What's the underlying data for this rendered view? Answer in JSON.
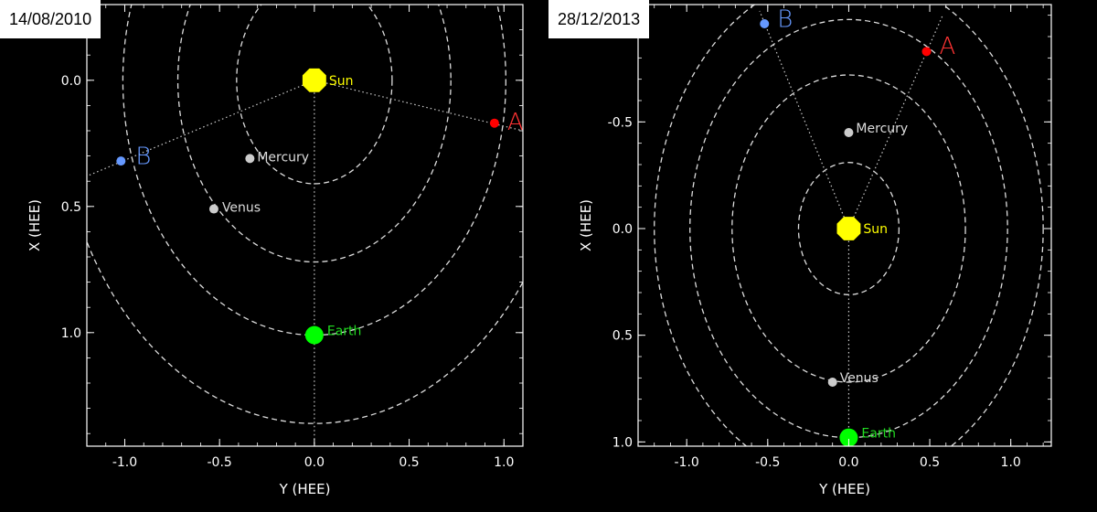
{
  "panels": [
    {
      "date": "14/08/2010",
      "chart_data": {
        "type": "scatter",
        "xlabel": "Y (HEE)",
        "ylabel": "X (HEE)",
        "xlim": [
          -1.2,
          1.1
        ],
        "ylim": [
          -0.3,
          1.45
        ],
        "y_inverted": true,
        "xticks": [
          -1.0,
          -0.5,
          0.0,
          0.5,
          1.0
        ],
        "xtick_labels": [
          "-1.0",
          "-0.5",
          "0.0",
          "0.5",
          "1.0"
        ],
        "yticks": [
          0.0,
          0.5,
          1.0
        ],
        "ytick_labels": [
          "0.0",
          "0.5",
          "1.0"
        ],
        "orbits": [
          {
            "cx": 0.0,
            "cy": 0.0,
            "r": 0.41
          },
          {
            "cx": 0.0,
            "cy": 0.0,
            "r": 0.72
          },
          {
            "cx": 0.0,
            "cy": 0.0,
            "r": 1.01
          },
          {
            "cx": 0.0,
            "cy": 0.0,
            "r": 1.36
          }
        ],
        "bodies": [
          {
            "name": "Sun",
            "x": 0.0,
            "y": 0.0,
            "color": "#ffff00",
            "size": 14,
            "label_color": "#ffff00",
            "label_dx": 16,
            "label_dy": 5
          },
          {
            "name": "Mercury",
            "x": -0.34,
            "y": 0.31,
            "color": "#cccccc",
            "size": 5,
            "label_color": "#dddddd",
            "label_dx": 8,
            "label_dy": 3
          },
          {
            "name": "Venus",
            "x": -0.53,
            "y": 0.51,
            "color": "#cccccc",
            "size": 5,
            "label_color": "#dddddd",
            "label_dx": 9,
            "label_dy": 3
          },
          {
            "name": "Earth",
            "x": 0.0,
            "y": 1.01,
            "color": "#00ff00",
            "size": 10,
            "label_color": "#22dd22",
            "label_dx": 14,
            "label_dy": 0
          },
          {
            "name": "A",
            "x": 0.95,
            "y": 0.17,
            "color": "#ff0000",
            "size": 5,
            "label_color": "#ff3333",
            "label_dx": 14,
            "label_dy": 0,
            "big_label": true
          },
          {
            "name": "B",
            "x": -1.02,
            "y": 0.32,
            "color": "#6699ff",
            "size": 5,
            "label_color": "#6699ff",
            "label_dx": 16,
            "label_dy": -4,
            "big_label": true
          }
        ],
        "connector_lines": [
          {
            "x1": 0.0,
            "y1": 0.0,
            "x2": 1.1,
            "y2": 0.2
          },
          {
            "x1": 0.0,
            "y1": 0.0,
            "x2": -1.2,
            "y2": 0.38
          },
          {
            "x1": 0.0,
            "y1": 0.0,
            "x2": 0.0,
            "y2": 1.45
          }
        ]
      }
    },
    {
      "date": "28/12/2013",
      "chart_data": {
        "type": "scatter",
        "xlabel": "Y (HEE)",
        "ylabel": "X (HEE)",
        "xlim": [
          -1.3,
          1.25
        ],
        "ylim": [
          -1.05,
          1.02
        ],
        "y_inverted": true,
        "xticks": [
          -1.0,
          -0.5,
          0.0,
          0.5,
          1.0
        ],
        "xtick_labels": [
          "-1.0",
          "-0.5",
          "0.0",
          "0.5",
          "1.0"
        ],
        "yticks": [
          -0.5,
          0.0,
          0.5,
          1.0
        ],
        "ytick_labels": [
          "-0.5",
          "0.0",
          "0.5",
          "1.0"
        ],
        "orbits": [
          {
            "cx": 0.0,
            "cy": 0.0,
            "r": 0.31
          },
          {
            "cx": 0.0,
            "cy": 0.0,
            "r": 0.72
          },
          {
            "cx": 0.0,
            "cy": 0.0,
            "r": 0.98
          },
          {
            "cx": 0.0,
            "cy": 0.0,
            "r": 1.2
          }
        ],
        "bodies": [
          {
            "name": "Sun",
            "x": 0.0,
            "y": 0.0,
            "color": "#ffff00",
            "size": 14,
            "label_color": "#ffff00",
            "label_dx": 16,
            "label_dy": 5
          },
          {
            "name": "Mercury",
            "x": 0.0,
            "y": -0.45,
            "color": "#cccccc",
            "size": 5,
            "label_color": "#dddddd",
            "label_dx": 8,
            "label_dy": 0
          },
          {
            "name": "Venus",
            "x": -0.1,
            "y": 0.72,
            "color": "#cccccc",
            "size": 5,
            "label_color": "#dddddd",
            "label_dx": 8,
            "label_dy": 0
          },
          {
            "name": "Earth",
            "x": 0.0,
            "y": 0.98,
            "color": "#00ff00",
            "size": 10,
            "label_color": "#22dd22",
            "label_dx": 14,
            "label_dy": 0
          },
          {
            "name": "A",
            "x": 0.48,
            "y": -0.83,
            "color": "#ff0000",
            "size": 5,
            "label_color": "#ff3333",
            "label_dx": 14,
            "label_dy": -5,
            "big_label": true
          },
          {
            "name": "B",
            "x": -0.52,
            "y": -0.96,
            "color": "#6699ff",
            "size": 5,
            "label_color": "#6699ff",
            "label_dx": 14,
            "label_dy": -4,
            "big_label": true
          }
        ],
        "connector_lines": [
          {
            "x1": 0.0,
            "y1": 0.0,
            "x2": 0.58,
            "y2": -1.0
          },
          {
            "x1": 0.0,
            "y1": 0.0,
            "x2": -0.55,
            "y2": -1.02
          },
          {
            "x1": 0.0,
            "y1": 0.0,
            "x2": 0.0,
            "y2": 1.02
          }
        ]
      }
    }
  ]
}
